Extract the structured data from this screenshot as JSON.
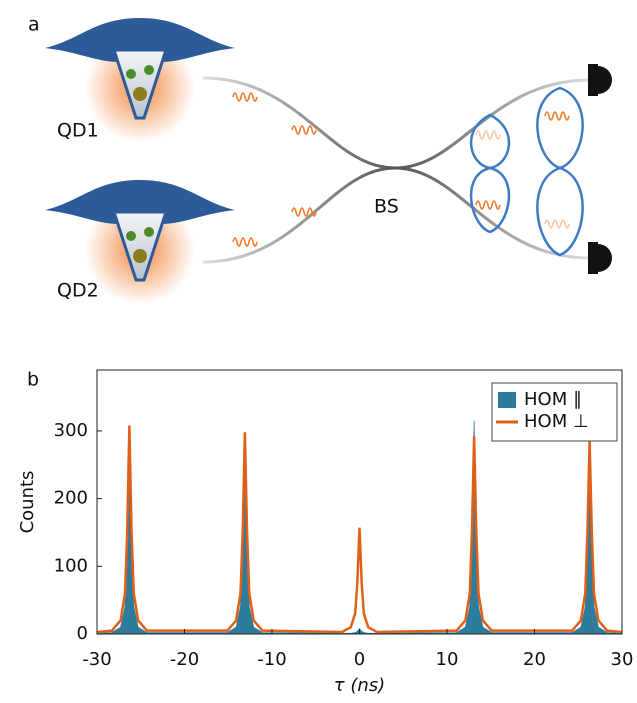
{
  "panel_a": {
    "label": "a",
    "qd1": "QD1",
    "qd2": "QD2",
    "bs": "BS"
  },
  "panel_b": {
    "label": "b"
  },
  "chart_data": {
    "type": "line",
    "xlabel": "τ (ns)",
    "ylabel": "Counts",
    "x": [
      -30,
      -28.3,
      -27.3,
      -26.8,
      -26.55,
      -26.3,
      -26.05,
      -25.8,
      -25.3,
      -24.3,
      -15.1,
      -14.1,
      -13.6,
      -13.35,
      -13.1,
      -12.85,
      -12.6,
      -12.1,
      -11.1,
      -2,
      -1,
      -0.5,
      -0.25,
      0,
      0.25,
      0.5,
      1,
      2,
      11.1,
      12.1,
      12.6,
      12.85,
      13.1,
      13.35,
      13.6,
      14.1,
      15.1,
      24.3,
      25.3,
      25.8,
      26.05,
      26.3,
      26.55,
      26.8,
      27.3,
      28.3,
      30
    ],
    "series": [
      {
        "name": "HOM ∥",
        "color": "#2e7c9c",
        "style": "area",
        "values": [
          1,
          2,
          10,
          40,
          120,
          300,
          120,
          40,
          10,
          2,
          2,
          10,
          40,
          120,
          295,
          120,
          40,
          10,
          2,
          1,
          1,
          2,
          4,
          8,
          4,
          2,
          1,
          1,
          2,
          10,
          40,
          120,
          315,
          120,
          40,
          10,
          2,
          2,
          10,
          40,
          120,
          290,
          120,
          40,
          10,
          2,
          1
        ]
      },
      {
        "name": "HOM ⊥",
        "color": "#e0601a",
        "style": "line",
        "values": [
          3,
          5,
          20,
          60,
          150,
          308,
          150,
          60,
          20,
          5,
          5,
          20,
          60,
          150,
          298,
          150,
          60,
          20,
          5,
          3,
          10,
          30,
          75,
          157,
          75,
          30,
          10,
          3,
          5,
          20,
          60,
          150,
          293,
          150,
          60,
          20,
          5,
          5,
          20,
          60,
          150,
          285,
          150,
          60,
          20,
          5,
          3
        ]
      }
    ],
    "xlim": [
      -30,
      30
    ],
    "xticks": [
      -30,
      -20,
      -10,
      0,
      10,
      20,
      30
    ],
    "ylim": [
      0,
      390
    ],
    "yticks": [
      0,
      100,
      200,
      300
    ],
    "legend": "upper right"
  }
}
